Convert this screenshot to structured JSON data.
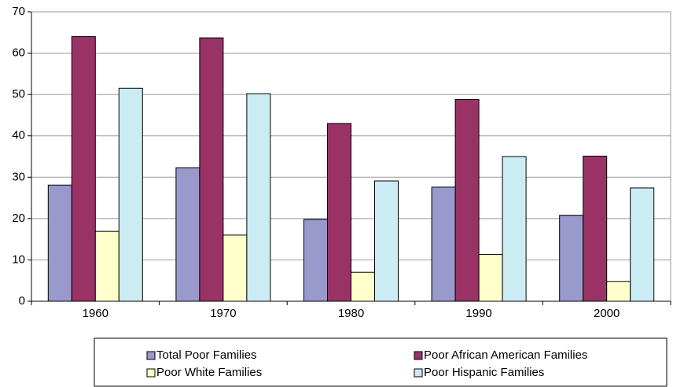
{
  "chart_data": {
    "type": "bar",
    "categories": [
      "1960",
      "1970",
      "1980",
      "1990",
      "2000"
    ],
    "series": [
      {
        "name": "Total Poor Families",
        "color": "#9999cc",
        "values": [
          28.1,
          32.3,
          19.8,
          27.6,
          20.8
        ]
      },
      {
        "name": "Poor African American Families",
        "color": "#993366",
        "values": [
          64.0,
          63.7,
          43.0,
          48.8,
          35.1
        ]
      },
      {
        "name": "Poor White Families",
        "color": "#ffffcc",
        "values": [
          16.9,
          16.0,
          7.0,
          11.3,
          4.8
        ]
      },
      {
        "name": "Poor Hispanic Families",
        "color": "#ccecf4",
        "values": [
          51.5,
          50.2,
          29.1,
          35.0,
          27.4
        ]
      }
    ],
    "ylim": [
      0,
      70
    ],
    "yticks": [
      0,
      10,
      20,
      30,
      40,
      50,
      60,
      70
    ],
    "grid": true,
    "legend": "bottom"
  }
}
